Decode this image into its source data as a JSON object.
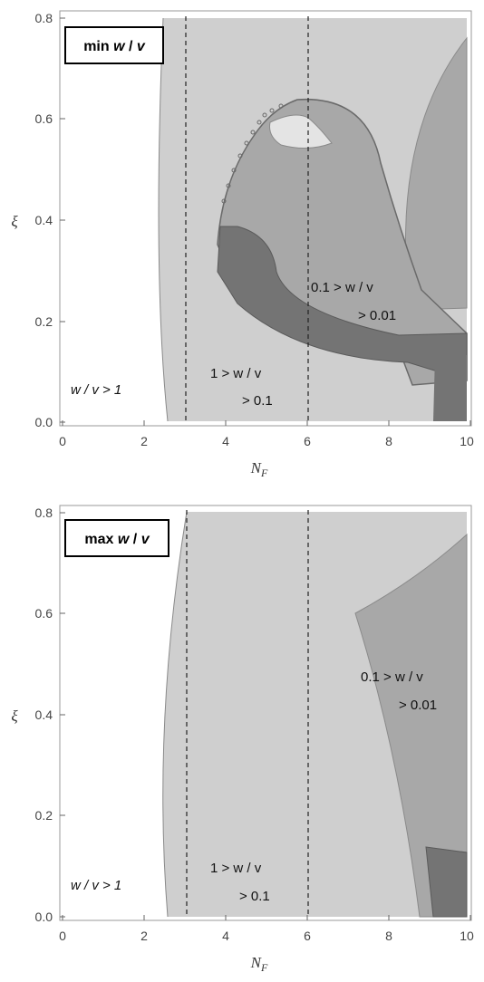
{
  "chart_data": [
    {
      "type": "contour",
      "title": "min w / v",
      "xlabel": "N_F",
      "ylabel": "ξ",
      "xlim": [
        0,
        10
      ],
      "ylim": [
        0,
        0.8
      ],
      "xticks": [
        "0",
        "2",
        "4",
        "6",
        "8",
        "10"
      ],
      "yticks": [
        "0.0",
        "0.2",
        "0.4",
        "0.6",
        "0.8"
      ],
      "vertical_lines": [
        3,
        6
      ],
      "labels": [
        {
          "text": "w / v > 1",
          "x": 1.1,
          "y": 0.07
        },
        {
          "text": "1 > w / v",
          "x": 3.9,
          "y": 0.15
        },
        {
          "text": "> 0.1",
          "x": 4.6,
          "y": 0.09
        },
        {
          "text": "0.1 > w / v",
          "x": 7.1,
          "y": 0.28
        },
        {
          "text": "> 0.01",
          "x": 7.8,
          "y": 0.21
        }
      ],
      "regions": [
        {
          "level": "w/v > 1",
          "color": "#ffffff"
        },
        {
          "level": "1 > w/v > 0.1",
          "color": "#cfcfcf"
        },
        {
          "level": "0.1 > w/v > 0.01",
          "color": "#a8a8a8"
        },
        {
          "level": "w/v < 0.01",
          "color": "#747474"
        }
      ]
    },
    {
      "type": "contour",
      "title": "max w / v",
      "xlabel": "N_F",
      "ylabel": "ξ",
      "xlim": [
        0,
        10
      ],
      "ylim": [
        0,
        0.8
      ],
      "xticks": [
        "0",
        "2",
        "4",
        "6",
        "8",
        "10"
      ],
      "yticks": [
        "0.0",
        "0.2",
        "0.4",
        "0.6",
        "0.8"
      ],
      "vertical_lines": [
        3,
        6
      ],
      "labels": [
        {
          "text": "w / v > 1",
          "x": 1.1,
          "y": 0.07
        },
        {
          "text": "1 > w / v",
          "x": 4.0,
          "y": 0.15
        },
        {
          "text": "> 0.1",
          "x": 4.6,
          "y": 0.09
        },
        {
          "text": "0.1 > w / v",
          "x": 7.6,
          "y": 0.49
        },
        {
          "text": "> 0.01",
          "x": 8.4,
          "y": 0.42
        }
      ],
      "regions": [
        {
          "level": "w/v > 1",
          "color": "#ffffff"
        },
        {
          "level": "1 > w/v > 0.1",
          "color": "#cfcfcf"
        },
        {
          "level": "0.1 > w/v > 0.01",
          "color": "#a8a8a8"
        },
        {
          "level": "w/v < 0.01",
          "color": "#747474"
        }
      ]
    }
  ],
  "panels": [
    {
      "title_main": "min",
      "title_w": "w",
      "title_sep": " / ",
      "title_v": "v",
      "xlabel_main": "N",
      "xlabel_sub": "F",
      "ylabel": "ξ",
      "xticks": [
        "0",
        "2",
        "4",
        "6",
        "8",
        "10"
      ],
      "yticks": [
        "0.0",
        "0.2",
        "0.4",
        "0.6",
        "0.8"
      ],
      "label_wv_gt1": "w / v > 1",
      "label_1gt": "1 > w / v",
      "label_gt01": "> 0.1",
      "label_01gt": "0.1 > w / v",
      "label_gt001": "> 0.01"
    },
    {
      "title_main": "max",
      "title_w": "w",
      "title_sep": " / ",
      "title_v": "v",
      "xlabel_main": "N",
      "xlabel_sub": "F",
      "ylabel": "ξ",
      "xticks": [
        "0",
        "2",
        "4",
        "6",
        "8",
        "10"
      ],
      "yticks": [
        "0.0",
        "0.2",
        "0.4",
        "0.6",
        "0.8"
      ],
      "label_wv_gt1": "w / v > 1",
      "label_1gt": "1 > w / v",
      "label_gt01": "> 0.1",
      "label_01gt": "0.1 > w / v",
      "label_gt001": "> 0.01"
    }
  ]
}
